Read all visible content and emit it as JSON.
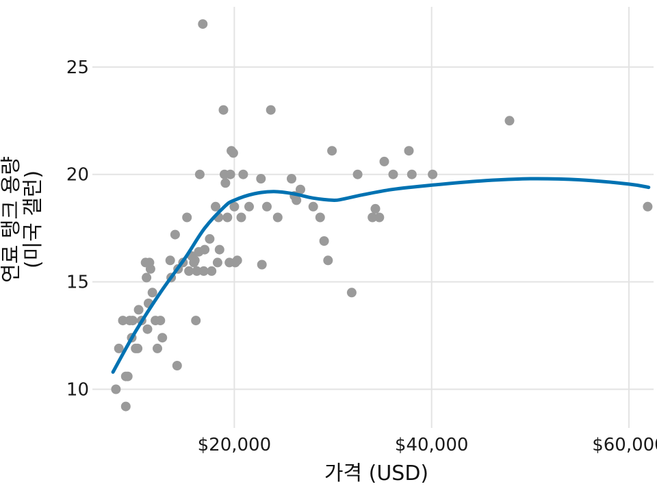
{
  "chart_data": {
    "type": "scatter",
    "xlabel": "가격 (USD)",
    "ylabel_lines": [
      "연료 탱크 용량",
      "(미국 갤런)"
    ],
    "xlim": [
      7000,
      62500
    ],
    "ylim": [
      8.2,
      27.8
    ],
    "x_ticks": [
      20000,
      40000,
      60000
    ],
    "x_tick_labels": [
      "$20,000",
      "$40,000",
      "$60,000"
    ],
    "y_ticks": [
      10,
      15,
      20,
      25
    ],
    "y_tick_labels": [
      "10",
      "15",
      "20",
      "25"
    ],
    "grid": true,
    "point_color": "#9a9a9a",
    "trend_color": "#0072b2",
    "points": [
      [
        8000,
        10.0
      ],
      [
        8700,
        13.2
      ],
      [
        9000,
        9.2
      ],
      [
        9000,
        10.6
      ],
      [
        9200,
        10.6
      ],
      [
        8300,
        11.9
      ],
      [
        9400,
        13.2
      ],
      [
        9700,
        13.2
      ],
      [
        10000,
        11.9
      ],
      [
        10200,
        11.9
      ],
      [
        9600,
        12.4
      ],
      [
        10300,
        13.7
      ],
      [
        10600,
        13.2
      ],
      [
        11000,
        15.9
      ],
      [
        11100,
        15.2
      ],
      [
        11200,
        12.8
      ],
      [
        11300,
        14.0
      ],
      [
        11400,
        15.9
      ],
      [
        11500,
        15.6
      ],
      [
        11700,
        14.5
      ],
      [
        12000,
        13.2
      ],
      [
        12200,
        11.9
      ],
      [
        12500,
        13.2
      ],
      [
        12700,
        12.4
      ],
      [
        13500,
        16.0
      ],
      [
        13600,
        15.2
      ],
      [
        14000,
        17.2
      ],
      [
        14200,
        11.1
      ],
      [
        14300,
        15.6
      ],
      [
        14800,
        15.9
      ],
      [
        15200,
        18.0
      ],
      [
        15400,
        15.5
      ],
      [
        15700,
        16.2
      ],
      [
        15900,
        15.9
      ],
      [
        16000,
        16.0
      ],
      [
        16100,
        13.2
      ],
      [
        16200,
        15.5
      ],
      [
        16400,
        16.4
      ],
      [
        16500,
        20.0
      ],
      [
        16800,
        27.0
      ],
      [
        17000,
        16.5
      ],
      [
        16900,
        15.5
      ],
      [
        17500,
        17.0
      ],
      [
        17700,
        15.5
      ],
      [
        18100,
        18.5
      ],
      [
        18300,
        15.9
      ],
      [
        18400,
        18.0
      ],
      [
        18500,
        16.5
      ],
      [
        18900,
        23.0
      ],
      [
        19000,
        20.0
      ],
      [
        19100,
        19.6
      ],
      [
        19300,
        18.0
      ],
      [
        19500,
        15.9
      ],
      [
        19600,
        20.0
      ],
      [
        19700,
        21.1
      ],
      [
        19900,
        21.0
      ],
      [
        20000,
        18.5
      ],
      [
        20100,
        15.9
      ],
      [
        20300,
        16.0
      ],
      [
        20700,
        18.0
      ],
      [
        20900,
        20.0
      ],
      [
        21500,
        18.5
      ],
      [
        22700,
        19.8
      ],
      [
        22800,
        15.8
      ],
      [
        23300,
        18.5
      ],
      [
        23700,
        23.0
      ],
      [
        24400,
        18.0
      ],
      [
        25800,
        19.8
      ],
      [
        26100,
        19.0
      ],
      [
        26300,
        18.8
      ],
      [
        26700,
        19.3
      ],
      [
        28000,
        18.5
      ],
      [
        28700,
        18.0
      ],
      [
        29100,
        16.9
      ],
      [
        29500,
        16.0
      ],
      [
        29900,
        21.1
      ],
      [
        31900,
        14.5
      ],
      [
        32500,
        20.0
      ],
      [
        34000,
        18.0
      ],
      [
        34300,
        18.4
      ],
      [
        34700,
        18.0
      ],
      [
        35200,
        20.6
      ],
      [
        36100,
        20.0
      ],
      [
        37700,
        21.1
      ],
      [
        38000,
        20.0
      ],
      [
        40100,
        20.0
      ],
      [
        47900,
        22.5
      ],
      [
        61900,
        18.5
      ]
    ],
    "trend": [
      [
        7700,
        10.8
      ],
      [
        10000,
        12.7
      ],
      [
        12500,
        14.5
      ],
      [
        15000,
        16.1
      ],
      [
        17000,
        17.5
      ],
      [
        19000,
        18.5
      ],
      [
        20000,
        18.8
      ],
      [
        22000,
        19.1
      ],
      [
        24000,
        19.2
      ],
      [
        26000,
        19.1
      ],
      [
        28000,
        18.9
      ],
      [
        30000,
        18.8
      ],
      [
        31000,
        18.85
      ],
      [
        33000,
        19.05
      ],
      [
        36000,
        19.3
      ],
      [
        40000,
        19.5
      ],
      [
        45000,
        19.7
      ],
      [
        50000,
        19.8
      ],
      [
        55000,
        19.75
      ],
      [
        60000,
        19.55
      ],
      [
        62000,
        19.4
      ]
    ]
  }
}
